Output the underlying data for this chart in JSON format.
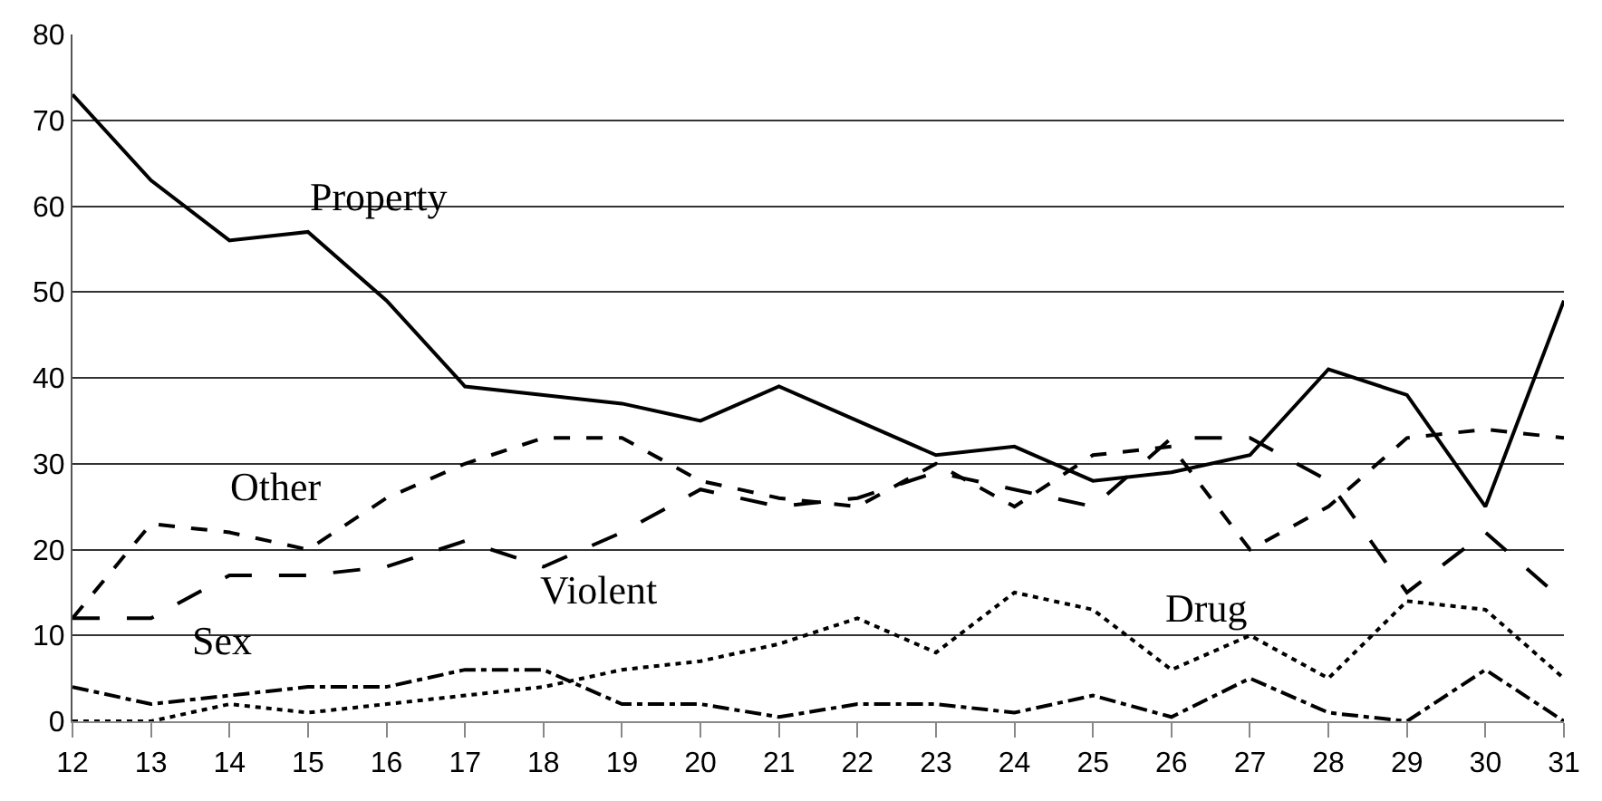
{
  "chart_data": {
    "type": "line",
    "x": [
      12,
      13,
      14,
      15,
      16,
      17,
      18,
      19,
      20,
      21,
      22,
      23,
      24,
      25,
      26,
      27,
      28,
      29,
      30,
      31
    ],
    "series": [
      {
        "name": "Property",
        "color": "#000000",
        "line_style": "solid",
        "values": [
          73,
          63,
          56,
          57,
          49,
          39,
          38,
          37,
          35,
          39,
          35,
          31,
          32,
          28,
          29,
          31,
          41,
          38,
          25,
          49
        ]
      },
      {
        "name": "Other",
        "color": "#000000",
        "line_style": "dashed",
        "values": [
          12,
          23,
          22,
          20,
          26,
          30,
          33,
          33,
          28,
          26,
          25,
          30,
          25,
          31,
          32,
          20,
          25,
          33,
          34,
          33
        ]
      },
      {
        "name": "Violent",
        "color": "#000000",
        "line_style": "longdash",
        "values": [
          12,
          12,
          17,
          17,
          18,
          21,
          18,
          22,
          27,
          25,
          26,
          29,
          27,
          25,
          33,
          33,
          28,
          15,
          22,
          14
        ]
      },
      {
        "name": "Drug",
        "color": "#000000",
        "line_style": "dotted",
        "values": [
          0,
          0,
          2,
          1,
          2,
          3,
          4,
          6,
          7,
          9,
          12,
          8,
          15,
          13,
          6,
          10,
          5,
          14,
          13,
          5
        ]
      },
      {
        "name": "Sex",
        "color": "#000000",
        "line_style": "dashdot",
        "values": [
          4,
          2,
          3,
          4,
          4,
          6,
          6,
          2,
          2,
          0.5,
          2,
          2,
          1,
          3,
          0.5,
          5,
          1,
          0,
          6,
          0
        ]
      }
    ],
    "xlim": [
      12,
      31
    ],
    "xticks": [
      12,
      13,
      14,
      15,
      16,
      17,
      18,
      19,
      20,
      21,
      22,
      23,
      24,
      25,
      26,
      27,
      28,
      29,
      30,
      31
    ],
    "ylim": [
      0,
      80
    ],
    "yticks": [
      0,
      10,
      20,
      30,
      40,
      50,
      60,
      70,
      80
    ],
    "grid": "y",
    "legend": false,
    "marker": "none"
  }
}
